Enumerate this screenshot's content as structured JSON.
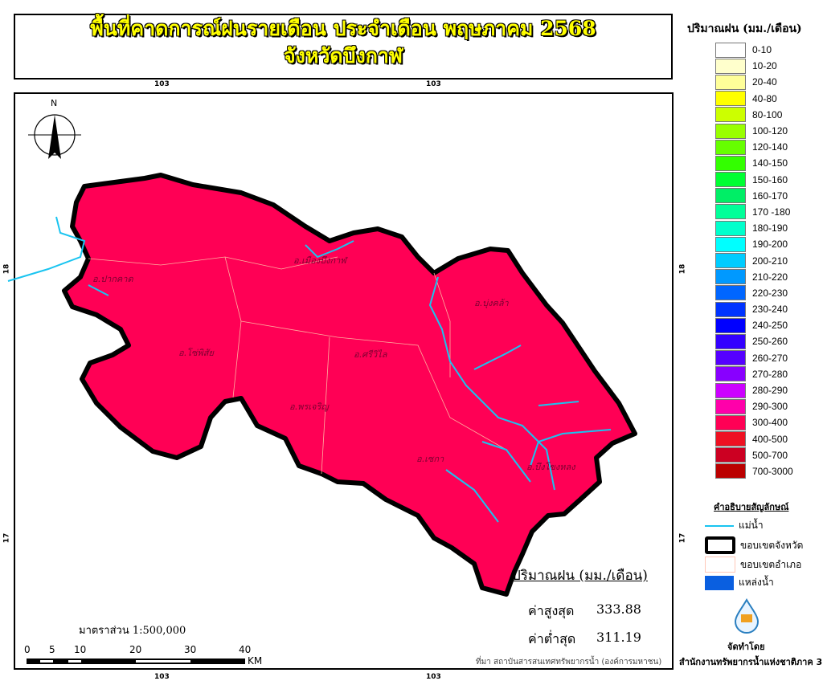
{
  "title": {
    "line1": "พื้นที่คาดการณ์ฝนรายเดือน ประจำเดือน พฤษภาคม 2568",
    "line2": "จังหวัดบึงกาฬ"
  },
  "grid_labels": {
    "top": [
      "103",
      "103"
    ],
    "bottom": [
      "103",
      "103"
    ],
    "left": [
      "18",
      "17"
    ],
    "right": [
      "18",
      "17"
    ]
  },
  "north_arrow": {
    "label": "N"
  },
  "districts": [
    "อ.ปากคาด",
    "อ.เมืองบึงกาฬ",
    "อ.บุ่งคล้า",
    "อ.โซ่พิสัย",
    "อ.ศรีวิไล",
    "อ.พรเจริญ",
    "อ.เซกา",
    "อ.บึงโขงหลง"
  ],
  "map_fill_color": "#ff0055",
  "river_color": "#19c4f0",
  "legend": {
    "title": "ปริมาณฝน (มม./เดือน)",
    "items": [
      {
        "label": "0-10",
        "color": "#ffffff"
      },
      {
        "label": "10-20",
        "color": "#ffffcc"
      },
      {
        "label": "20-40",
        "color": "#ffff99"
      },
      {
        "label": "40-80",
        "color": "#ffff00"
      },
      {
        "label": "80-100",
        "color": "#ccff00"
      },
      {
        "label": "100-120",
        "color": "#99ff00"
      },
      {
        "label": "120-140",
        "color": "#66ff00"
      },
      {
        "label": "140-150",
        "color": "#33ff00"
      },
      {
        "label": "150-160",
        "color": "#00ff33"
      },
      {
        "label": "160-170",
        "color": "#00ee66"
      },
      {
        "label": "170 -180",
        "color": "#00ff99"
      },
      {
        "label": "180-190",
        "color": "#00ffcc"
      },
      {
        "label": "190-200",
        "color": "#00ffff"
      },
      {
        "label": "200-210",
        "color": "#00ccff"
      },
      {
        "label": "210-220",
        "color": "#0099ff"
      },
      {
        "label": "220-230",
        "color": "#0066ff"
      },
      {
        "label": "230-240",
        "color": "#0033ff"
      },
      {
        "label": "240-250",
        "color": "#0000ff"
      },
      {
        "label": "250-260",
        "color": "#3300ff"
      },
      {
        "label": "260-270",
        "color": "#5500ff"
      },
      {
        "label": "270-280",
        "color": "#8800ff"
      },
      {
        "label": "280-290",
        "color": "#cc00ff"
      },
      {
        "label": "290-300",
        "color": "#ff00aa"
      },
      {
        "label": "300-400",
        "color": "#ff0055"
      },
      {
        "label": "400-500",
        "color": "#ee1122"
      },
      {
        "label": "500-700",
        "color": "#cc0022"
      },
      {
        "label": "700-3000",
        "color": "#bb0000"
      }
    ]
  },
  "symbols": {
    "title": "คำอธิบายสัญลักษณ์",
    "river": "แม่น้ำ",
    "province_boundary": "ขอบเขตจังหวัด",
    "district_boundary": "ขอบเขตอำเภอ",
    "water_body": "แหล่งน้ำ"
  },
  "credit": {
    "prepared_by": "จัดทำโดย",
    "org": "สำนักงานทรัพยากรน้ำแห่งชาติภาค 3"
  },
  "stats": {
    "heading": "ปริมาณฝน (มม./เดือน)",
    "max_label": "ค่าสูงสุด",
    "max_value": "333.88",
    "min_label": "ค่าต่ำสุด",
    "min_value": "311.19"
  },
  "source": "ที่มา  สถาบันสารสนเทศทรัพยากรน้ำ (องค์การมหาชน)",
  "scale": {
    "text": "มาตราส่วน 1:500,000",
    "ticks": [
      "0",
      "5",
      "10",
      "20",
      "30",
      "40"
    ],
    "unit": "KM"
  }
}
